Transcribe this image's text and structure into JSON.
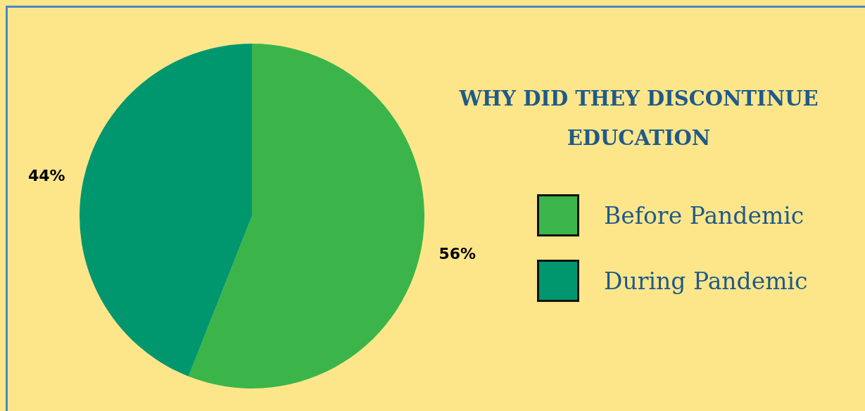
{
  "chart_data": {
    "type": "pie",
    "title": "WHY DID THEY DISCONTINUE EDUCATION",
    "categories": [
      "Before Pandemic",
      "During Pandemic"
    ],
    "values": [
      56,
      44
    ],
    "value_labels": [
      "56%",
      "44%"
    ],
    "colors": [
      "#3bb54a",
      "#00976f"
    ],
    "legend": "right"
  }
}
